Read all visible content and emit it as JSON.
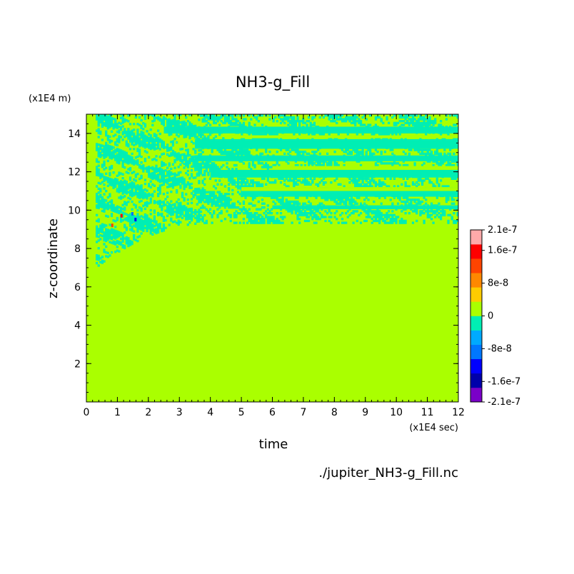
{
  "chart_data": {
    "type": "heatmap",
    "title": "NH3-g_Fill",
    "xlabel": "time",
    "ylabel": "z-coordinate",
    "x_unit": "(x1E4 sec)",
    "y_unit": "(x1E4 m)",
    "source": "./jupiter_NH3-g_Fill.nc",
    "xlim": [
      0,
      12
    ],
    "ylim": [
      0,
      15
    ],
    "x_ticks": [
      "0",
      "1",
      "2",
      "3",
      "4",
      "5",
      "6",
      "7",
      "8",
      "9",
      "10",
      "11",
      "12"
    ],
    "y_ticks": [
      "2",
      "4",
      "6",
      "8",
      "10",
      "12",
      "14"
    ],
    "y_tick_values": [
      2,
      4,
      6,
      8,
      10,
      12,
      14
    ],
    "colorbar": {
      "labels": [
        "2.1e-7",
        "1.6e-7",
        "8e-8",
        "0",
        "-8e-8",
        "-1.6e-7",
        "-2.1e-7"
      ],
      "label_values": [
        2.1e-07,
        1.6e-07,
        8e-08,
        0,
        -8e-08,
        -1.6e-07,
        -2.1e-07
      ],
      "colors": [
        "#7a00c8",
        "#0000aa",
        "#0000ff",
        "#0077ff",
        "#00aaff",
        "#00eeb4",
        "#aaff00",
        "#ffcc00",
        "#ff8800",
        "#ff4400",
        "#ff0000",
        "#ffaaaa"
      ],
      "min": -2.1e-07,
      "max": 2.1e-07
    },
    "background_value": 0,
    "background_color": "#aaff00",
    "negative_color": "#00eeb4",
    "perturbed_region": {
      "top_z": 15,
      "bottom_z_start": 7,
      "bottom_z_settled": 9.3,
      "settle_time": 4
    },
    "bands": [
      {
        "x0": 2.5,
        "x1": 12,
        "z0": 14.0,
        "z1": 14.35
      },
      {
        "x0": 3.5,
        "x1": 12,
        "z0": 13.2,
        "z1": 13.7
      },
      {
        "x0": 3.5,
        "x1": 12,
        "z0": 12.55,
        "z1": 12.85
      },
      {
        "x0": 4.0,
        "x1": 12,
        "z0": 11.7,
        "z1": 12.1
      },
      {
        "x0": 5.0,
        "x1": 12,
        "z0": 10.7,
        "z1": 11.0
      },
      {
        "x0": 6.0,
        "x1": 12,
        "z0": 10.05,
        "z1": 10.25
      }
    ]
  }
}
